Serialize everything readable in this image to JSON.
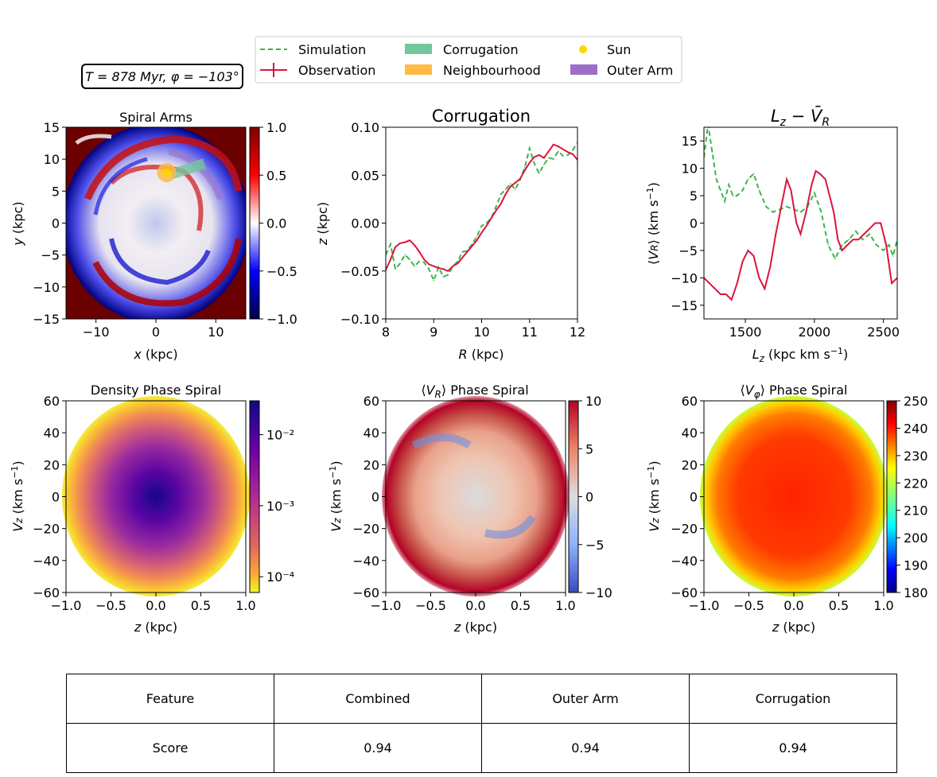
{
  "legend": {
    "items": [
      {
        "label": "Simulation",
        "kind": "dashed-line",
        "color": "#3cb44b"
      },
      {
        "label": "Observation",
        "kind": "line-errorbar",
        "color": "#dc143c"
      },
      {
        "label": "Corrugation",
        "kind": "patch",
        "color": "#74c69d"
      },
      {
        "label": "Neighbourhood",
        "kind": "patch",
        "color": "#ffbb44"
      },
      {
        "label": "Sun",
        "kind": "marker",
        "color": "#ffd700"
      },
      {
        "label": "Outer Arm",
        "kind": "patch",
        "color": "#9b6fc7"
      }
    ]
  },
  "info_box": {
    "time_label": "T = 878 Myr, φ = −103°"
  },
  "table": {
    "headers": [
      "Feature",
      "Combined",
      "Outer Arm",
      "Corrugation"
    ],
    "row_label": "Score",
    "values": [
      "0.94",
      "0.94",
      "0.94"
    ]
  },
  "chart_data": [
    {
      "id": "spiral-arms",
      "type": "heatmap",
      "title": "Spiral Arms",
      "xlabel": "x (kpc)",
      "ylabel": "y (kpc)",
      "xlim": [
        -15,
        15
      ],
      "ylim": [
        -15,
        15
      ],
      "xticks": [
        "−10",
        "0",
        "10"
      ],
      "xtick_values": [
        -10,
        0,
        10
      ],
      "yticks": [
        "−15",
        "−10",
        "−5",
        "0",
        "5",
        "10",
        "15"
      ],
      "ytick_values": [
        -15,
        -10,
        -5,
        0,
        5,
        10,
        15
      ],
      "colorbar": {
        "ticks": [
          "1.0",
          "0.5",
          "0.0",
          "−0.5",
          "−1.0"
        ],
        "range": [
          -1,
          1
        ],
        "colormap": "seismic"
      },
      "sun": {
        "x": 1.8,
        "y": 7.9
      },
      "neighbourhood_radius_kpc": 1.6,
      "corrugation_patch": {
        "r_range": [
          8,
          12
        ],
        "phi_deg_center": 103
      },
      "outer_arm_arc": {
        "r_kpc": 11.3,
        "phi_deg_range": [
          103,
          160
        ]
      }
    },
    {
      "id": "corrugation",
      "type": "line",
      "title": "Corrugation",
      "xlabel": "R (kpc)",
      "ylabel": "z (kpc)",
      "xlim": [
        8,
        12
      ],
      "ylim": [
        -0.1,
        0.1
      ],
      "xticks": [
        "8",
        "9",
        "10",
        "11",
        "12"
      ],
      "xtick_values": [
        8,
        9,
        10,
        11,
        12
      ],
      "yticks": [
        "0.10",
        "0.05",
        "0.00",
        "−0.05",
        "−0.10"
      ],
      "ytick_values": [
        0.1,
        0.05,
        0,
        -0.05,
        -0.1
      ],
      "series": [
        {
          "name": "Simulation",
          "style": "dashed",
          "color": "#3cb44b",
          "x": [
            8.0,
            8.1,
            8.2,
            8.3,
            8.4,
            8.5,
            8.6,
            8.7,
            8.8,
            8.9,
            9.0,
            9.1,
            9.2,
            9.3,
            9.4,
            9.5,
            9.6,
            9.7,
            9.8,
            9.9,
            10.0,
            10.1,
            10.2,
            10.3,
            10.4,
            10.5,
            10.6,
            10.7,
            10.8,
            10.9,
            11.0,
            11.1,
            11.2,
            11.3,
            11.4,
            11.5,
            11.6,
            11.7,
            11.8,
            11.9,
            12.0
          ],
          "y": [
            -0.033,
            -0.022,
            -0.048,
            -0.042,
            -0.033,
            -0.038,
            -0.045,
            -0.04,
            -0.041,
            -0.048,
            -0.06,
            -0.046,
            -0.056,
            -0.054,
            -0.045,
            -0.04,
            -0.03,
            -0.029,
            -0.022,
            -0.014,
            -0.003,
            0.0,
            0.005,
            0.017,
            0.03,
            0.035,
            0.041,
            0.035,
            0.045,
            0.058,
            0.078,
            0.062,
            0.052,
            0.061,
            0.068,
            0.067,
            0.075,
            0.07,
            0.071,
            0.076,
            0.084
          ]
        },
        {
          "name": "Observation",
          "style": "solid",
          "color": "#dc143c",
          "x": [
            8.0,
            8.1,
            8.2,
            8.3,
            8.4,
            8.5,
            8.6,
            8.7,
            8.8,
            8.9,
            9.0,
            9.1,
            9.2,
            9.3,
            9.4,
            9.5,
            9.6,
            9.7,
            9.8,
            9.9,
            10.0,
            10.1,
            10.2,
            10.3,
            10.4,
            10.5,
            10.6,
            10.7,
            10.8,
            10.9,
            11.0,
            11.1,
            11.2,
            11.3,
            11.4,
            11.5,
            11.6,
            11.7,
            11.8,
            11.9,
            12.0
          ],
          "y": [
            -0.049,
            -0.038,
            -0.025,
            -0.021,
            -0.02,
            -0.018,
            -0.023,
            -0.03,
            -0.038,
            -0.043,
            -0.045,
            -0.047,
            -0.048,
            -0.05,
            -0.045,
            -0.042,
            -0.036,
            -0.03,
            -0.024,
            -0.018,
            -0.01,
            -0.003,
            0.005,
            0.013,
            0.02,
            0.03,
            0.038,
            0.042,
            0.046,
            0.055,
            0.063,
            0.069,
            0.071,
            0.068,
            0.075,
            0.082,
            0.08,
            0.077,
            0.074,
            0.072,
            0.066
          ]
        }
      ]
    },
    {
      "id": "lz-vr",
      "type": "line",
      "title": "L_z − V̄_R",
      "xlabel": "L_z (kpc km s⁻¹)",
      "ylabel": "⟨V_R⟩ (km s⁻¹)",
      "xlim": [
        1200,
        2600
      ],
      "ylim": [
        -17.5,
        17.5
      ],
      "xticks": [
        "1500",
        "2000",
        "2500"
      ],
      "xtick_values": [
        1500,
        2000,
        2500
      ],
      "yticks": [
        "15",
        "10",
        "5",
        "0",
        "−5",
        "−10",
        "−15"
      ],
      "ytick_values": [
        15,
        10,
        5,
        0,
        -5,
        -10,
        -15
      ],
      "series": [
        {
          "name": "Simulation",
          "style": "dashed",
          "color": "#3cb44b",
          "x": [
            1200,
            1230,
            1260,
            1290,
            1320,
            1350,
            1380,
            1410,
            1440,
            1480,
            1520,
            1560,
            1600,
            1650,
            1700,
            1750,
            1800,
            1850,
            1900,
            1950,
            2000,
            2050,
            2100,
            2150,
            2200,
            2250,
            2300,
            2350,
            2400,
            2450,
            2500,
            2540,
            2570,
            2600
          ],
          "y": [
            12,
            18,
            13,
            8,
            6,
            4,
            7,
            5,
            5,
            6,
            8,
            9,
            6,
            3,
            2,
            2.5,
            3,
            2.5,
            2,
            3,
            5.5,
            2,
            -4,
            -6.5,
            -4,
            -3,
            -1.5,
            -3,
            -2,
            -4,
            -5,
            -4,
            -6,
            -3
          ]
        },
        {
          "name": "Observation",
          "style": "solid",
          "color": "#dc143c",
          "x": [
            1200,
            1240,
            1280,
            1320,
            1360,
            1400,
            1440,
            1480,
            1520,
            1560,
            1600,
            1640,
            1680,
            1720,
            1760,
            1800,
            1830,
            1870,
            1900,
            1940,
            1980,
            2010,
            2040,
            2080,
            2110,
            2140,
            2170,
            2200,
            2240,
            2280,
            2320,
            2360,
            2400,
            2440,
            2480,
            2520,
            2560,
            2600
          ],
          "y": [
            -10,
            -11,
            -12,
            -13,
            -13,
            -14,
            -11,
            -7,
            -5,
            -6,
            -10,
            -12,
            -8,
            -2,
            3,
            8,
            6,
            0,
            -2,
            2,
            7,
            9.5,
            9,
            8,
            5,
            2,
            -3,
            -5,
            -4,
            -3,
            -3,
            -2,
            -1,
            0,
            0,
            -4,
            -11,
            -10
          ]
        }
      ]
    },
    {
      "id": "density-phase-spiral",
      "type": "heatmap",
      "title": "Density Phase Spiral",
      "xlabel": "z (kpc)",
      "ylabel": "V_z (km s⁻¹)",
      "xlim": [
        -1,
        1
      ],
      "ylim": [
        -60,
        60
      ],
      "xticks": [
        "−1.0",
        "−0.5",
        "0.0",
        "0.5",
        "1.0"
      ],
      "xtick_values": [
        -1,
        -0.5,
        0,
        0.5,
        1
      ],
      "yticks": [
        "60",
        "40",
        "20",
        "0",
        "−20",
        "−40",
        "−60"
      ],
      "ytick_values": [
        60,
        40,
        20,
        0,
        -20,
        -40,
        -60
      ],
      "colorbar": {
        "ticks": [
          "10⁻²",
          "10⁻³",
          "10⁻⁴"
        ],
        "scale": "log",
        "range": [
          6e-05,
          0.03
        ],
        "colormap": "plasma_r"
      }
    },
    {
      "id": "vr-phase-spiral",
      "type": "heatmap",
      "title": "⟨V_R⟩ Phase Spiral",
      "xlabel": "z (kpc)",
      "ylabel": "V_z (km s⁻¹)",
      "xlim": [
        -1,
        1
      ],
      "ylim": [
        -60,
        60
      ],
      "xticks": [
        "−1.0",
        "−0.5",
        "0.0",
        "0.5",
        "1.0"
      ],
      "xtick_values": [
        -1,
        -0.5,
        0,
        0.5,
        1
      ],
      "yticks": [
        "60",
        "40",
        "20",
        "0",
        "−20",
        "−40",
        "−60"
      ],
      "ytick_values": [
        60,
        40,
        20,
        0,
        -20,
        -40,
        -60
      ],
      "colorbar": {
        "ticks": [
          "10",
          "5",
          "0",
          "−5",
          "−10"
        ],
        "range": [
          -10,
          10
        ],
        "colormap": "coolwarm"
      }
    },
    {
      "id": "vphi-phase-spiral",
      "type": "heatmap",
      "title": "⟨V_φ⟩ Phase Spiral",
      "xlabel": "z (kpc)",
      "ylabel": "V_z (km s⁻¹)",
      "xlim": [
        -1,
        1
      ],
      "ylim": [
        -60,
        60
      ],
      "xticks": [
        "−1.0",
        "−0.5",
        "0.0",
        "0.5",
        "1.0"
      ],
      "xtick_values": [
        -1,
        -0.5,
        0,
        0.5,
        1
      ],
      "yticks": [
        "60",
        "40",
        "20",
        "0",
        "−20",
        "−40",
        "−60"
      ],
      "ytick_values": [
        60,
        40,
        20,
        0,
        -20,
        -40,
        -60
      ],
      "colorbar": {
        "ticks": [
          "250",
          "240",
          "230",
          "220",
          "210",
          "200",
          "190",
          "180"
        ],
        "range": [
          180,
          250
        ],
        "colormap": "jet"
      }
    }
  ]
}
